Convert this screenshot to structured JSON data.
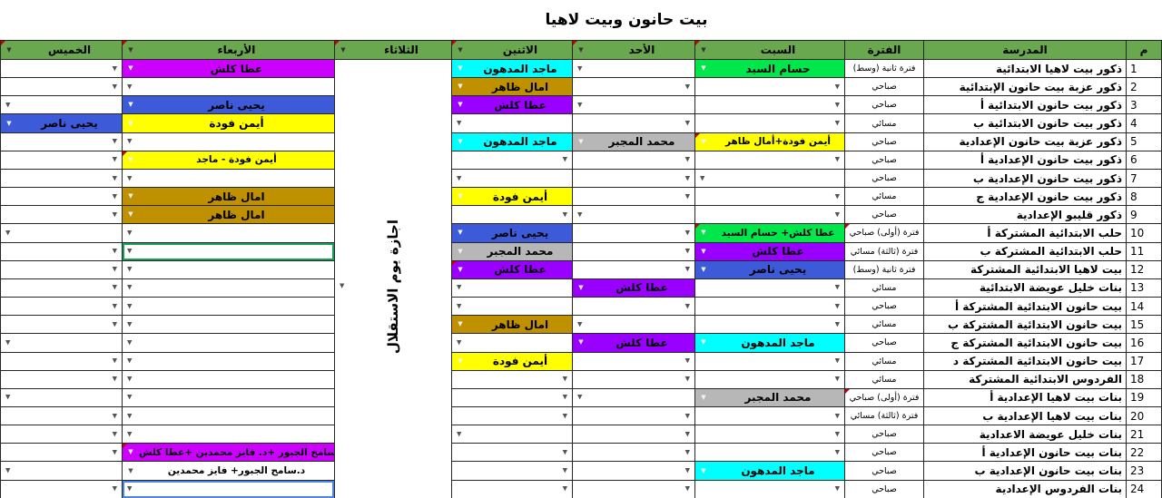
{
  "title": "بيت حانون وبيت لاهيا",
  "columns": {
    "num": "م",
    "school": "المدرسة",
    "period": "الفترة",
    "sat": "السبت",
    "sun": "الأحد",
    "mon": "الاثنين",
    "tue": "الثلاثاء",
    "wed": "الأربعاء",
    "thu": "الخميس"
  },
  "tuesday": {
    "note": "اجازة يوم الاستقلال"
  },
  "icons": {
    "dropdown": "▼"
  },
  "colors": {
    "header_green": "#6aa84f",
    "grid_line": "#262626",
    "green": "#00e64b",
    "yellow": "#ffff00",
    "gold": "#bf9000",
    "purple": "#9900ff",
    "magenta": "#cc00ff",
    "cyan": "#00ffff",
    "blue": "#3d5bd9",
    "gray": "#b7b7b7",
    "white": "#ffffff",
    "marker_red": "#cc0000",
    "selection_green": "#15a05a",
    "selection_blue": "#4a86e8"
  },
  "rows": [
    {
      "num": "1",
      "school": "ذكور بيت لاهيا الابتدائية",
      "period": "فترة ثانية (وسط)",
      "sat": {
        "name": "حسام السيد",
        "color": "green"
      },
      "sun": {
        "arrow": "left"
      },
      "mon": {
        "name": "ماجد المدهون",
        "color": "cyan"
      },
      "wed": {
        "name": "عطا كلش",
        "color": "magenta"
      },
      "thu": {
        "arrow": "right"
      }
    },
    {
      "num": "2",
      "school": "ذكور عزبة بيت حانون الإبتدائية",
      "period": "صباحي",
      "sat": {
        "arrow": "right"
      },
      "sun": {
        "arrow": "right"
      },
      "mon": {
        "name": "امال ظاهر",
        "color": "gold"
      },
      "wed": {
        "arrow": "left"
      },
      "thu": {
        "arrow": "right"
      }
    },
    {
      "num": "3",
      "school": "ذكور بيت حانون الابتدائية أ",
      "period": "صباحي",
      "sat": {
        "arrow": "right"
      },
      "sun": {
        "arrow": "left"
      },
      "mon": {
        "name": "عطا كلش",
        "color": "purple"
      },
      "wed": {
        "name": "يحيى ناصر",
        "color": "blue"
      },
      "thu": {
        "arrow": "left"
      }
    },
    {
      "num": "4",
      "school": "ذكور بيت حانون الابتدائية ب",
      "period": "مسائي",
      "sat": {
        "arrow": "right"
      },
      "sun": {
        "arrow": "right"
      },
      "mon": {
        "arrow": "left"
      },
      "wed": {
        "name": "أيمن فودة",
        "color": "yellow"
      },
      "thu": {
        "name": "يحيى ناصر",
        "color": "blue"
      }
    },
    {
      "num": "5",
      "school": "ذكور عزبة بيت حانون الإعدادية",
      "period": "صباحي",
      "sat": {
        "name": "أيمن فودة+أمال ظاهر",
        "color": "yellow",
        "marker": true
      },
      "sun": {
        "name": "محمد المجبر",
        "color": "gray"
      },
      "mon": {
        "name": "ماجد المدهون",
        "color": "cyan"
      },
      "wed": {
        "arrow": "left"
      },
      "thu": {
        "arrow": "right"
      }
    },
    {
      "num": "6",
      "school": "ذكور بيت حانون الإعدادية أ",
      "period": "صباحي",
      "sat": {
        "arrow": "right"
      },
      "sun": {
        "arrow": "right"
      },
      "mon": {
        "arrow": "right"
      },
      "wed": {
        "name": "أيمن فودة - ماجد",
        "color": "yellow",
        "marker": true
      },
      "thu": {
        "arrow": "right"
      }
    },
    {
      "num": "7",
      "school": "ذكور بيت حانون الإعدادية ب",
      "period": "صباحي",
      "sat": {
        "arrow": "left"
      },
      "sun": {
        "arrow": "right"
      },
      "mon": {
        "arrow": "left"
      },
      "wed": {
        "arrow": "left"
      },
      "thu": {
        "arrow": "right"
      }
    },
    {
      "num": "8",
      "school": "ذكور بيت حانون الإعدادية ج",
      "period": "مسائي",
      "sat": {
        "arrow": "right"
      },
      "sun": {
        "arrow": "right"
      },
      "mon": {
        "name": "أيمن فودة",
        "color": "yellow"
      },
      "wed": {
        "name": "امال ظاهر",
        "color": "gold"
      },
      "thu": {
        "arrow": "right"
      }
    },
    {
      "num": "9",
      "school": "ذكور قليبو الإعدادية",
      "period": "صباحي",
      "sat": {
        "arrow": "right"
      },
      "sun": {
        "arrow": "left"
      },
      "mon": {
        "arrow": "right"
      },
      "wed": {
        "name": "امال ظاهر",
        "color": "gold"
      },
      "thu": {
        "arrow": "right"
      }
    },
    {
      "num": "10",
      "school": "حلب الابتدائية المشتركة أ",
      "period": "فترة (أولى) صباحي",
      "period_marker": true,
      "sat": {
        "name": "عطا كلش+ حسام السيد",
        "color": "green",
        "marker": true
      },
      "sun": {
        "arrow": "right"
      },
      "mon": {
        "name": "يحيى ناصر",
        "color": "blue"
      },
      "wed": {
        "arrow": "left"
      },
      "thu": {
        "arrow": "left"
      }
    },
    {
      "num": "11",
      "school": "حلب الابتدائية المشتركة ب",
      "period": "فترة (ثالثة) مسائي",
      "sat": {
        "name": "عطا كلش",
        "color": "purple"
      },
      "sun": {
        "arrow": "right"
      },
      "mon": {
        "name": "محمد المجبر",
        "color": "gray"
      },
      "wed": {
        "arrow": "left",
        "sel": "green"
      },
      "thu": {
        "arrow": "right"
      }
    },
    {
      "num": "12",
      "school": "بيت لاهيا الابتدائية المشتركة",
      "period": "فترة ثانية (وسط)",
      "sat": {
        "name": "يحيى ناصر",
        "color": "blue"
      },
      "sun": {
        "arrow": "right"
      },
      "mon": {
        "name": "عطا كلش",
        "color": "purple",
        "marker": true
      },
      "wed": {
        "arrow": "left"
      },
      "thu": {
        "arrow": "right"
      }
    },
    {
      "num": "13",
      "school": "بنات خليل عويضة الابتدائية",
      "period": "مسائي",
      "sat": {
        "arrow": "right"
      },
      "sun": {
        "name": "عطا كلش",
        "color": "purple"
      },
      "mon": {
        "arrow": "left"
      },
      "wed": {
        "arrow": "left"
      },
      "thu": {
        "arrow": "right"
      }
    },
    {
      "num": "14",
      "school": "بيت حانون الابتدائية المشتركة أ",
      "period": "صباحي",
      "sat": {
        "arrow": "right"
      },
      "sun": {
        "arrow": "right"
      },
      "mon": {
        "arrow": "left"
      },
      "wed": {
        "arrow": "left"
      },
      "thu": {
        "arrow": "right"
      }
    },
    {
      "num": "15",
      "school": "بيت حانون الابتدائية المشتركة ب",
      "period": "مسائي",
      "sat": {
        "arrow": "right"
      },
      "sun": {
        "arrow": "left"
      },
      "mon": {
        "name": "امال ظاهر",
        "color": "gold"
      },
      "wed": {
        "arrow": "left"
      },
      "thu": {
        "arrow": "right"
      }
    },
    {
      "num": "16",
      "school": "بيت حانون الابتدائية المشتركة ج",
      "period": "صباحي",
      "sat": {
        "name": "ماجد المدهون",
        "color": "cyan"
      },
      "sun": {
        "name": "عطا كلش",
        "color": "purple"
      },
      "mon": {
        "arrow": "left"
      },
      "wed": {
        "arrow": "left"
      },
      "thu": {
        "arrow": "left"
      }
    },
    {
      "num": "17",
      "school": "بيت حانون الابتدائية المشتركة د",
      "period": "مسائي",
      "sat": {
        "arrow": "right"
      },
      "sun": {
        "arrow": "right"
      },
      "mon": {
        "name": "أيمن فودة",
        "color": "yellow"
      },
      "wed": {
        "arrow": "left"
      },
      "thu": {
        "arrow": "right"
      }
    },
    {
      "num": "18",
      "school": "الفردوس الابتدائية المشتركة",
      "period": "مسائي",
      "sat": {
        "arrow": "right"
      },
      "sun": {
        "arrow": "right"
      },
      "mon": {
        "arrow": "right"
      },
      "wed": {
        "arrow": "left"
      },
      "thu": {
        "arrow": "right"
      }
    },
    {
      "num": "19",
      "school": "بنات بيت لاهيا الإعدادية أ",
      "period": "فترة (أولى) صباحي",
      "period_marker": true,
      "sat": {
        "name": "محمد المجبر",
        "color": "gray"
      },
      "sun": {
        "arrow": "left"
      },
      "mon": {
        "arrow": "right"
      },
      "wed": {
        "arrow": "left"
      },
      "thu": {
        "arrow": "left"
      }
    },
    {
      "num": "20",
      "school": "بنات بيت لاهيا الإعدادية ب",
      "period": "فترة (ثالثة) مسائي",
      "sat": {
        "arrow": "right"
      },
      "sun": {
        "arrow": "right"
      },
      "mon": {
        "arrow": "right"
      },
      "wed": {
        "arrow": "left"
      },
      "thu": {
        "arrow": "right"
      }
    },
    {
      "num": "21",
      "school": "بنات خليل عويضة الاعدادية",
      "period": "صباحي",
      "sat": {
        "arrow": "right"
      },
      "sun": {
        "arrow": "right"
      },
      "mon": {
        "arrow": "left"
      },
      "wed": {
        "arrow": "left"
      },
      "thu": {
        "arrow": "right"
      }
    },
    {
      "num": "22",
      "school": "بنات بيت حانون الإعدادية أ",
      "period": "صباحي",
      "sat": {
        "arrow": "right"
      },
      "sun": {
        "arrow": "right"
      },
      "mon": {
        "arrow": "right"
      },
      "wed": {
        "name": "د.سامح الجبور +د. فايز محمدين +عطا كلش",
        "color": "magenta",
        "marker": true
      },
      "thu": {
        "arrow": "right"
      }
    },
    {
      "num": "23",
      "school": "بنات بيت حانون الإعدادية ب",
      "period": "صباحي",
      "sat": {
        "name": "ماجد المدهون",
        "color": "cyan"
      },
      "sun": {
        "arrow": "right"
      },
      "mon": {
        "arrow": "right"
      },
      "wed": {
        "name": "د.سامح الجبور+ فايز محمدين",
        "color": "white"
      },
      "thu": {
        "arrow": "left"
      }
    },
    {
      "num": "24",
      "school": "بنات الفردوس الإعدادية",
      "period": "صباحي",
      "sat": {
        "arrow": "right"
      },
      "sun": {
        "arrow": "right"
      },
      "mon": {
        "arrow": "right"
      },
      "wed": {
        "arrow": "left",
        "sel": "blue"
      },
      "thu": {
        "arrow": "right"
      }
    }
  ]
}
